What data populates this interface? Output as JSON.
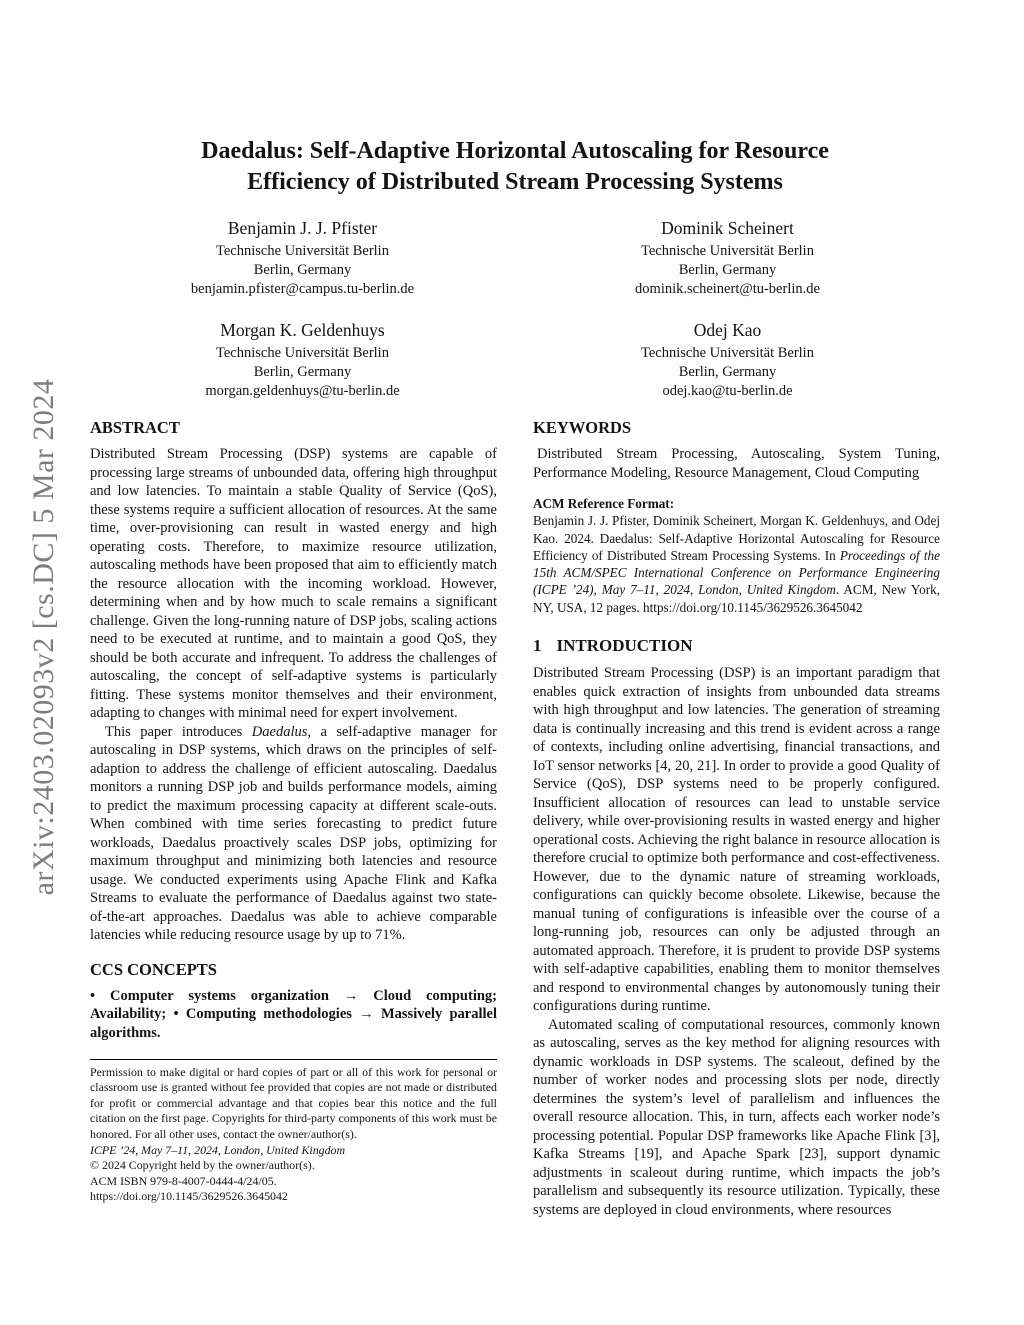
{
  "page": {
    "arxiv_watermark": "arXiv:2403.02093v2  [cs.DC]  5 Mar 2024"
  },
  "title": {
    "line1": "Daedalus: Self-Adaptive Horizontal Autoscaling for Resource",
    "line2": "Efficiency of Distributed Stream Processing Systems"
  },
  "authors": [
    {
      "name": "Benjamin J. J. Pfister",
      "affiliation": "Technische Universität Berlin",
      "location": "Berlin, Germany",
      "email": "benjamin.pfister@campus.tu-berlin.de"
    },
    {
      "name": "Dominik Scheinert",
      "affiliation": "Technische Universität Berlin",
      "location": "Berlin, Germany",
      "email": "dominik.scheinert@tu-berlin.de"
    },
    {
      "name": "Morgan K. Geldenhuys",
      "affiliation": "Technische Universität Berlin",
      "location": "Berlin, Germany",
      "email": "morgan.geldenhuys@tu-berlin.de"
    },
    {
      "name": "Odej Kao",
      "affiliation": "Technische Universität Berlin",
      "location": "Berlin, Germany",
      "email": "odej.kao@tu-berlin.de"
    }
  ],
  "abstract": {
    "heading": "ABSTRACT",
    "p1": "Distributed Stream Processing (DSP) systems are capable of processing large streams of unbounded data, offering high throughput and low latencies. To maintain a stable Quality of Service (QoS), these systems require a sufficient allocation of resources. At the same time, over-provisioning can result in wasted energy and high operating costs. Therefore, to maximize resource utilization, autoscaling methods have been proposed that aim to efficiently match the resource allocation with the incoming workload. However, determining when and by how much to scale remains a significant challenge. Given the long-running nature of DSP jobs, scaling actions need to be executed at runtime, and to maintain a good QoS, they should be both accurate and infrequent. To address the challenges of autoscaling, the concept of self-adaptive systems is particularly fitting. These systems monitor themselves and their environment, adapting to changes with minimal need for expert involvement.",
    "p2_pre": "This paper introduces ",
    "p2_italic": "Daedalus",
    "p2_post": ", a self-adaptive manager for autoscaling in DSP systems, which draws on the principles of self-adaption to address the challenge of efficient autoscaling. Daedalus monitors a running DSP job and builds performance models, aiming to predict the maximum processing capacity at different scale-outs. When combined with time series forecasting to predict future workloads, Daedalus proactively scales DSP jobs, optimizing for maximum throughput and minimizing both latencies and resource usage. We conducted experiments using Apache Flink and Kafka Streams to evaluate the performance of Daedalus against two state-of-the-art approaches. Daedalus was able to achieve comparable latencies while reducing resource usage by up to 71%."
  },
  "ccs": {
    "heading": "CCS CONCEPTS",
    "text": "• Computer systems organization → Cloud computing; Availability; • Computing methodologies → Massively parallel algorithms."
  },
  "permission": {
    "body": "Permission to make digital or hard copies of part or all of this work for personal or classroom use is granted without fee provided that copies are not made or distributed for profit or commercial advantage and that copies bear this notice and the full citation on the first page. Copyrights for third-party components of this work must be honored. For all other uses, contact the owner/author(s).",
    "conference": "ICPE ’24, May 7–11, 2024, London, United Kingdom",
    "copyright": "© 2024 Copyright held by the owner/author(s).",
    "isbn": "ACM ISBN 979-8-4007-0444-4/24/05.",
    "doi": "https://doi.org/10.1145/3629526.3645042"
  },
  "keywords": {
    "heading": "KEYWORDS",
    "text": "Distributed Stream Processing, Autoscaling, System Tuning, Performance Modeling, Resource Management, Cloud Computing"
  },
  "acm_ref": {
    "label": "ACM Reference Format:",
    "pre": "Benjamin J. J. Pfister, Dominik Scheinert, Morgan K. Geldenhuys, and Odej Kao. 2024. Daedalus: Self-Adaptive Horizontal Autoscaling for Resource Efficiency of Distributed Stream Processing Systems. In ",
    "italic": "Proceedings of the 15th ACM/SPEC International Conference on Performance Engineering (ICPE ’24), May 7–11, 2024, London, United Kingdom",
    "mid": ". ACM, New York, NY, USA, 12 pages. ",
    "url": "https://doi.org/10.1145/3629526.3645042"
  },
  "intro": {
    "number": "1",
    "heading": "INTRODUCTION",
    "p1": "Distributed Stream Processing (DSP) is an important paradigm that enables quick extraction of insights from unbounded data streams with high throughput and low latencies. The generation of streaming data is continually increasing and this trend is evident across a range of contexts, including online advertising, financial transactions, and IoT sensor networks [4, 20, 21]. In order to provide a good Quality of Service (QoS), DSP systems need to be properly configured. Insufficient allocation of resources can lead to unstable service delivery, while over-provisioning results in wasted energy and higher operational costs. Achieving the right balance in resource allocation is therefore crucial to optimize both performance and cost-effectiveness. However, due to the dynamic nature of streaming workloads, configurations can quickly become obsolete. Likewise, because the manual tuning of configurations is infeasible over the course of a long-running job, resources can only be adjusted through an automated approach. Therefore, it is prudent to provide DSP systems with self-adaptive capabilities, enabling them to monitor themselves and respond to environmental changes by autonomously tuning their configurations during runtime.",
    "p2": "Automated scaling of computational resources, commonly known as autoscaling, serves as the key method for aligning resources with dynamic workloads in DSP systems. The scaleout, defined by the number of worker nodes and processing slots per node, directly determines the system’s level of parallelism and influences the overall resource allocation. This, in turn, affects each worker node’s processing potential. Popular DSP frameworks like Apache Flink [3], Kafka Streams [19], and Apache Spark [23], support dynamic adjustments in scaleout during runtime, which impacts the job’s parallelism and subsequently its resource utilization. Typically, these systems are deployed in cloud environments, where resources"
  }
}
